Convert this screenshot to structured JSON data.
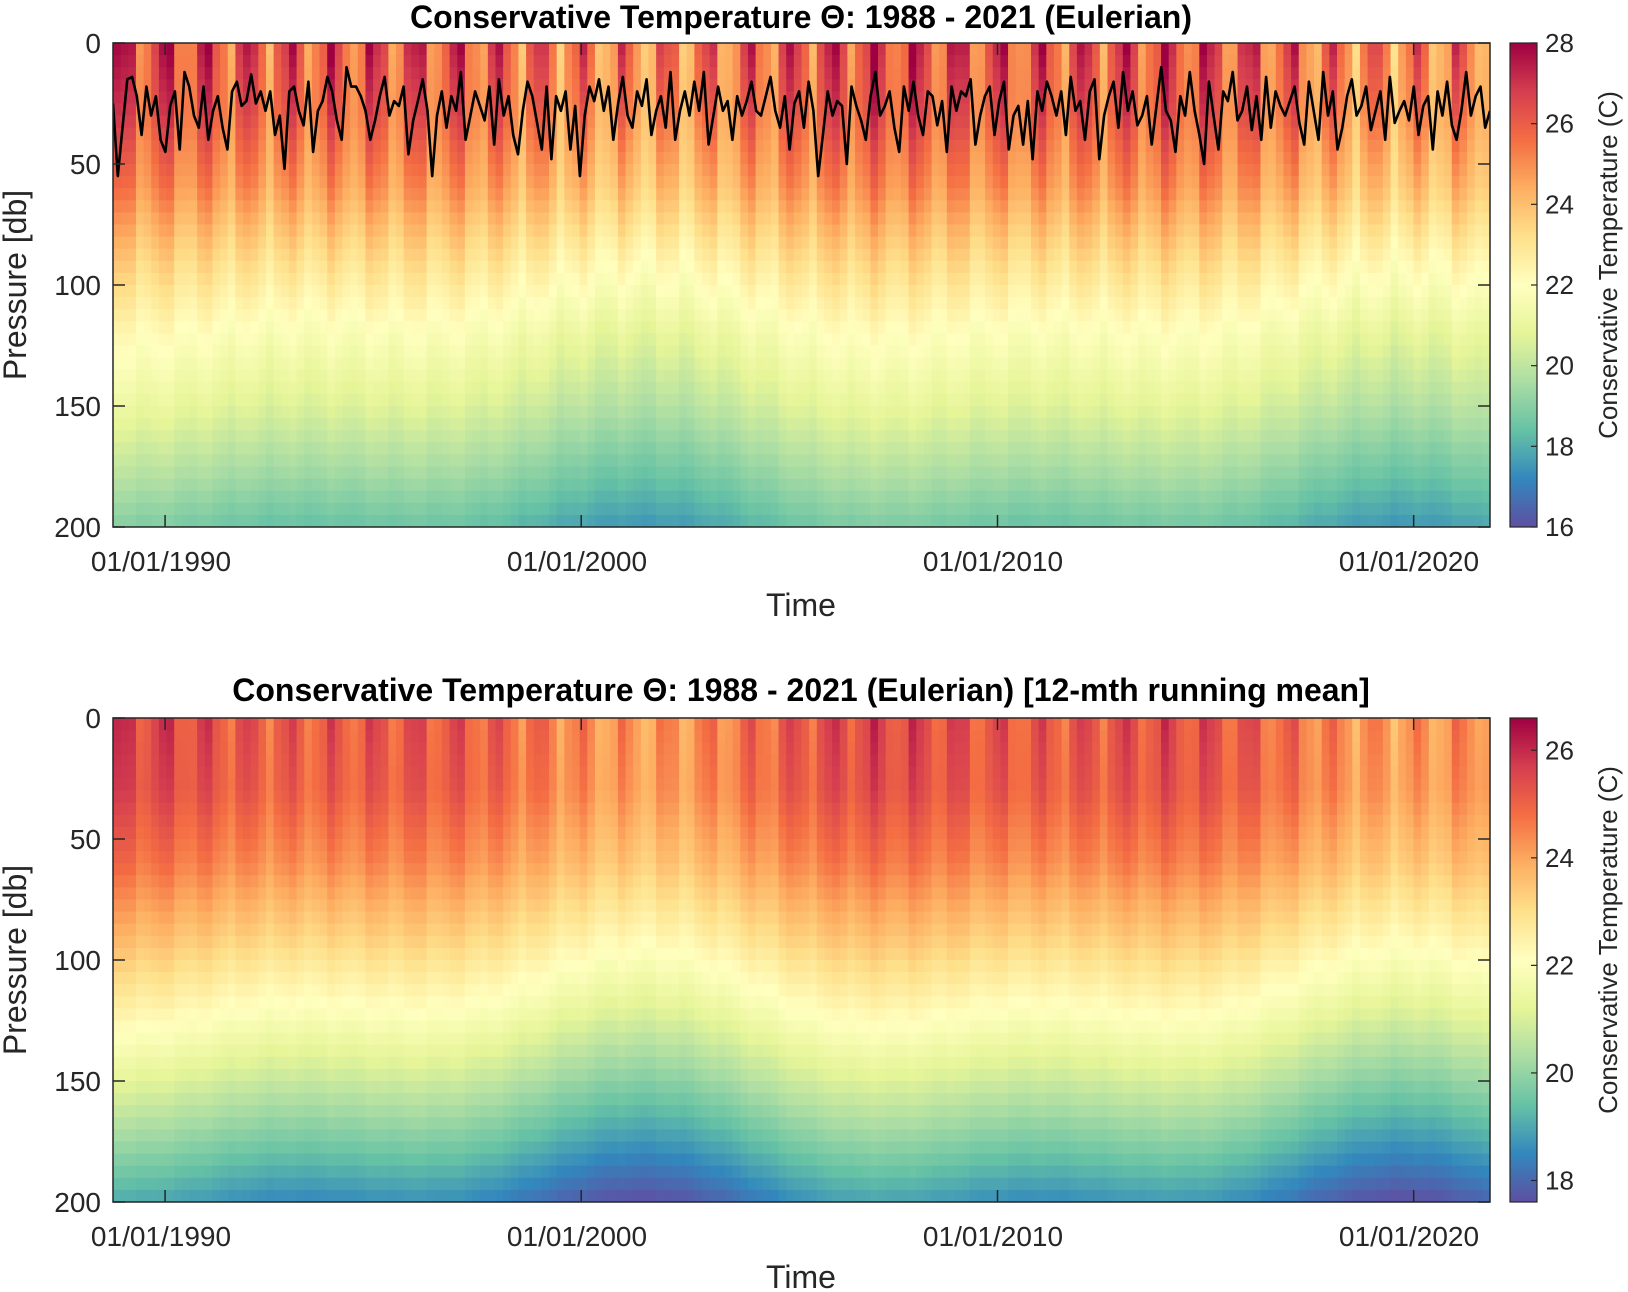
{
  "chart_data": [
    {
      "type": "heatmap",
      "title": "Conservative Temperature Θ: 1988 - 2021 (Eulerian)",
      "xlabel": "Time",
      "ylabel": "Pressure [db]",
      "x_tick_labels": [
        "01/01/1990",
        "01/01/2000",
        "01/01/2010",
        "01/01/2020"
      ],
      "x_ticks": [
        "1990-01-01",
        "2000-01-01",
        "2010-01-01",
        "2020-01-01"
      ],
      "xlim": [
        "1988-10-01",
        "2021-11-01"
      ],
      "y_ticks": [
        0,
        50,
        100,
        150,
        200
      ],
      "ylim": [
        0,
        200
      ],
      "y_reversed": true,
      "colorbar": {
        "label": "Conservative Temperature (C)",
        "ticks": [
          16,
          18,
          20,
          22,
          24,
          26,
          28
        ],
        "range": [
          16,
          28
        ],
        "colormap": "spectral"
      },
      "profile": [
        {
          "depth": 0,
          "temp": 26.0
        },
        {
          "depth": 30,
          "temp": 25.6
        },
        {
          "depth": 60,
          "temp": 24.6
        },
        {
          "depth": 90,
          "temp": 23.0
        },
        {
          "depth": 120,
          "temp": 21.6
        },
        {
          "depth": 150,
          "temp": 20.5
        },
        {
          "depth": 180,
          "temp": 19.2
        },
        {
          "depth": 200,
          "temp": 18.3
        }
      ],
      "seasonal_amplitude": 1.7,
      "overlay_line": {
        "color": "#000000",
        "description": "mixed-layer depth",
        "values": [
          25,
          55,
          35,
          15,
          14,
          22,
          38,
          18,
          30,
          22,
          40,
          45,
          26,
          20,
          44,
          12,
          18,
          30,
          35,
          18,
          40,
          28,
          22,
          35,
          44,
          20,
          16,
          26,
          24,
          13,
          25,
          20,
          28,
          20,
          38,
          30,
          52,
          20,
          18,
          28,
          34,
          16,
          45,
          28,
          24,
          14,
          20,
          32,
          40,
          10,
          18,
          18,
          22,
          28,
          40,
          32,
          22,
          14,
          30,
          24,
          26,
          18,
          46,
          32,
          24,
          15,
          28,
          55,
          30,
          20,
          35,
          22,
          28,
          12,
          40,
          30,
          20,
          26,
          32,
          18,
          42,
          15,
          30,
          22,
          38,
          46,
          28,
          16,
          22,
          33,
          44,
          18,
          48,
          22,
          28,
          20,
          44,
          26,
          55,
          30,
          18,
          24,
          15,
          28,
          18,
          40,
          25,
          14,
          30,
          35,
          20,
          26,
          15,
          38,
          28,
          22,
          35,
          12,
          40,
          28,
          20,
          30,
          16,
          28,
          12,
          42,
          30,
          18,
          28,
          24,
          40,
          22,
          30,
          24,
          16,
          28,
          30,
          22,
          14,
          28,
          35,
          22,
          44,
          25,
          20,
          35,
          16,
          28,
          55,
          38,
          20,
          30,
          24,
          26,
          50,
          18,
          26,
          32,
          40,
          22,
          12,
          30,
          26,
          20,
          35,
          45,
          18,
          28,
          16,
          30,
          38,
          20,
          22,
          34,
          24,
          45,
          18,
          28,
          20,
          22,
          15,
          42,
          30,
          22,
          18,
          38,
          24,
          16,
          44,
          30,
          26,
          42,
          24,
          48,
          20,
          28,
          16,
          22,
          30,
          20,
          38,
          14,
          28,
          24,
          40,
          20,
          15,
          48,
          30,
          22,
          16,
          35,
          12,
          28,
          20,
          34,
          30,
          22,
          42,
          26,
          10,
          28,
          32,
          45,
          22,
          30,
          12,
          28,
          38,
          50,
          16,
          30,
          44,
          20,
          24,
          12,
          32,
          28,
          18,
          36,
          22,
          40,
          14,
          35,
          20,
          26,
          30,
          24,
          18,
          33,
          42,
          16,
          28,
          40,
          12,
          30,
          20,
          44,
          35,
          22,
          15,
          30,
          26,
          18,
          36,
          28,
          20,
          40,
          14,
          33,
          28,
          24,
          32,
          18,
          38,
          26,
          22,
          44,
          20,
          30,
          16,
          34,
          40,
          28,
          12,
          30,
          22,
          18,
          35,
          28
        ]
      }
    },
    {
      "type": "heatmap",
      "title": "Conservative Temperature Θ: 1988 - 2021 (Eulerian) [12-mth running mean]",
      "xlabel": "Time",
      "ylabel": "Pressure [db]",
      "x_tick_labels": [
        "01/01/1990",
        "01/01/2000",
        "01/01/2010",
        "01/01/2020"
      ],
      "x_ticks": [
        "1990-01-01",
        "2000-01-01",
        "2010-01-01",
        "2020-01-01"
      ],
      "xlim": [
        "1988-10-01",
        "2021-11-01"
      ],
      "y_ticks": [
        0,
        50,
        100,
        150,
        200
      ],
      "ylim": [
        0,
        200
      ],
      "y_reversed": true,
      "colorbar": {
        "label": "Conservative Temperature (C)",
        "ticks": [
          18,
          20,
          22,
          24,
          26
        ],
        "range": [
          17.6,
          26.6
        ],
        "colormap": "spectral"
      },
      "profile": [
        {
          "depth": 0,
          "temp": 25.0
        },
        {
          "depth": 30,
          "temp": 24.9
        },
        {
          "depth": 60,
          "temp": 24.2
        },
        {
          "depth": 90,
          "temp": 23.1
        },
        {
          "depth": 120,
          "temp": 21.9
        },
        {
          "depth": 150,
          "temp": 20.6
        },
        {
          "depth": 180,
          "temp": 19.3
        },
        {
          "depth": 200,
          "temp": 18.4
        }
      ],
      "seasonal_amplitude": 0.6
    }
  ]
}
